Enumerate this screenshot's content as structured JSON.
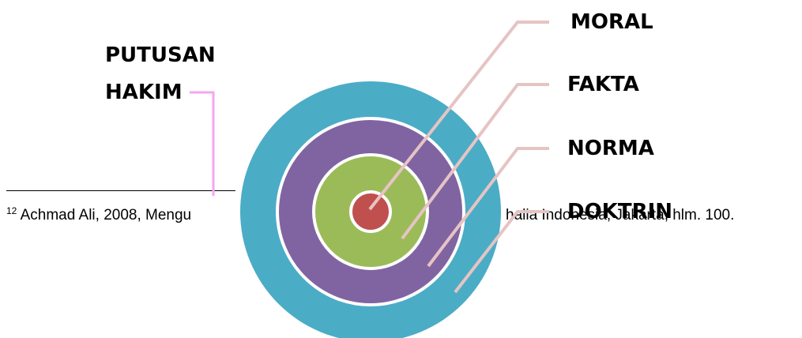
{
  "labels": {
    "moral": "MORAL",
    "fakta": "FAKTA",
    "norma": "NORMA",
    "doktrin": "DOKTRIN",
    "putusan_line1": "PUTUSAN",
    "putusan_line2": "HAKIM"
  },
  "footnote": {
    "number": "12",
    "text_before": " Achmad Ali, 2008, Mengu",
    "text_after": "halia Indonesia, Jakarta, hlm. 100."
  },
  "colors": {
    "outer_ring": "#4bacc6",
    "purple_ring": "#8064a2",
    "green_ring": "#9bbb59",
    "red_center": "#c0504d",
    "ring_border": "#ffffff",
    "leader_line": "#e6c4c4",
    "putusan_leader": "#f5a6f0"
  }
}
